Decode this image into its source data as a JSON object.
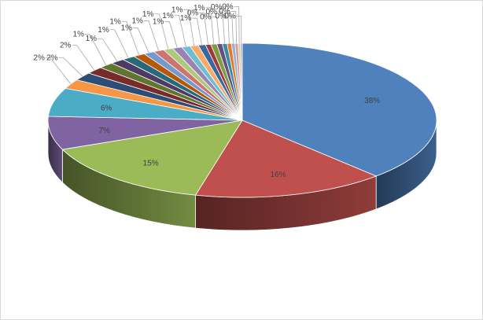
{
  "chart_data": {
    "type": "pie",
    "style": "3d-exploded-depth",
    "title": "",
    "legend": "none",
    "slices": [
      {
        "label": "38%",
        "value": 38.0,
        "color": "#4F81BD"
      },
      {
        "label": "16%",
        "value": 16.0,
        "color": "#C0504D"
      },
      {
        "label": "15%",
        "value": 15.0,
        "color": "#9BBB59"
      },
      {
        "label": "7%",
        "value": 7.0,
        "color": "#8064A2"
      },
      {
        "label": "6%",
        "value": 6.0,
        "color": "#4BACC6"
      },
      {
        "label": "2%",
        "value": 2.0,
        "color": "#F79646"
      },
      {
        "label": "2%",
        "value": 1.7,
        "color": "#2C4D75"
      },
      {
        "label": "2%",
        "value": 1.5,
        "color": "#772C2A"
      },
      {
        "label": "1%",
        "value": 1.3,
        "color": "#5F7530"
      },
      {
        "label": "1%",
        "value": 1.2,
        "color": "#4D3B62"
      },
      {
        "label": "1%",
        "value": 1.1,
        "color": "#276A7C"
      },
      {
        "label": "1%",
        "value": 1.0,
        "color": "#B65708"
      },
      {
        "label": "1%",
        "value": 0.9,
        "color": "#729ACA"
      },
      {
        "label": "1%",
        "value": 0.9,
        "color": "#CD7371"
      },
      {
        "label": "1%",
        "value": 0.8,
        "color": "#AFC97A"
      },
      {
        "label": "1%",
        "value": 0.8,
        "color": "#9983B5"
      },
      {
        "label": "1%",
        "value": 0.7,
        "color": "#6FBDD1"
      },
      {
        "label": "1%",
        "value": 0.7,
        "color": "#F9AB6B"
      },
      {
        "label": "1%",
        "value": 0.6,
        "color": "#3A67A0"
      },
      {
        "label": "0%",
        "value": 0.45,
        "color": "#9E3B38"
      },
      {
        "label": "1%",
        "value": 0.5,
        "color": "#7E9D40"
      },
      {
        "label": "0%",
        "value": 0.45,
        "color": "#664F83"
      },
      {
        "label": "0%",
        "value": 0.4,
        "color": "#348EA4"
      },
      {
        "label": "0%",
        "value": 0.35,
        "color": "#E7782C"
      },
      {
        "label": "0%",
        "value": 0.3,
        "color": "#95B3D7"
      },
      {
        "label": "0%",
        "value": 0.25,
        "color": "#D99694"
      },
      {
        "label": "0%",
        "value": 0.2,
        "color": "#C3D69B"
      },
      {
        "label": "0%",
        "value": 0.15,
        "color": "#B2A2C7"
      }
    ]
  }
}
